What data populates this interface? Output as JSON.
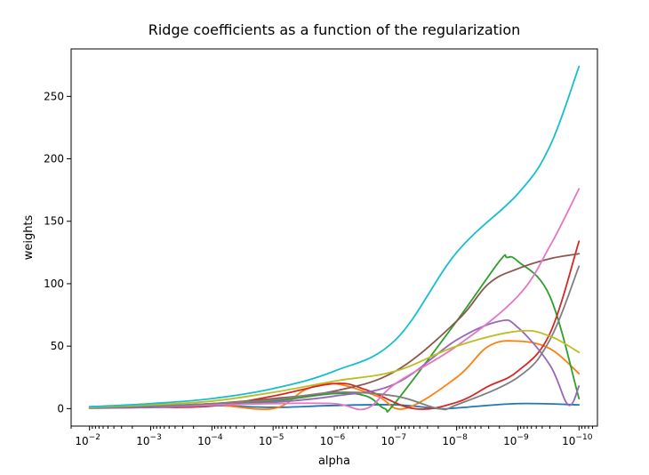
{
  "chart_data": {
    "type": "line",
    "title": "Ridge coefficients as a function of the regularization",
    "xlabel": "alpha",
    "ylabel": "weights",
    "xscale": "log",
    "xaxis_reversed": true,
    "xlim": [
      0.02,
      5e-11
    ],
    "ylim": [
      -14,
      288
    ],
    "grid": false,
    "legend": "none",
    "x_ticks": [
      {
        "value": 0.01,
        "base": "10",
        "exp": "−2"
      },
      {
        "value": 0.001,
        "base": "10",
        "exp": "−3"
      },
      {
        "value": 0.0001,
        "base": "10",
        "exp": "−4"
      },
      {
        "value": 1e-05,
        "base": "10",
        "exp": "−5"
      },
      {
        "value": 1e-06,
        "base": "10",
        "exp": "−6"
      },
      {
        "value": 1e-07,
        "base": "10",
        "exp": "−7"
      },
      {
        "value": 1e-08,
        "base": "10",
        "exp": "−8"
      },
      {
        "value": 1e-09,
        "base": "10",
        "exp": "−9"
      },
      {
        "value": 1e-10,
        "base": "10",
        "exp": "−10"
      }
    ],
    "y_ticks": [
      {
        "value": 0,
        "label": "0"
      },
      {
        "value": 50,
        "label": "50"
      },
      {
        "value": 100,
        "label": "100"
      },
      {
        "value": 150,
        "label": "150"
      },
      {
        "value": 200,
        "label": "200"
      },
      {
        "value": 250,
        "label": "250"
      }
    ],
    "x": [
      0.01,
      0.001,
      0.0001,
      1e-05,
      1e-06,
      1e-07,
      1e-08,
      1e-09,
      1e-10
    ],
    "series": [
      {
        "color": "#1f77b4",
        "points": [
          [
            0.01,
            1.5
          ],
          [
            0.001,
            2
          ],
          [
            0.0001,
            2.5
          ],
          [
            1e-05,
            1
          ],
          [
            1e-06,
            2.5
          ],
          [
            1e-07,
            3
          ],
          [
            2e-08,
            0
          ],
          [
            1e-08,
            0.5
          ],
          [
            1e-09,
            4
          ],
          [
            1e-10,
            3
          ]
        ]
      },
      {
        "color": "#ff7f0e",
        "points": [
          [
            0.01,
            0.5
          ],
          [
            0.001,
            1.5
          ],
          [
            0.0001,
            3
          ],
          [
            1e-05,
            0
          ],
          [
            3e-06,
            15
          ],
          [
            1e-06,
            20
          ],
          [
            2e-07,
            10
          ],
          [
            7e-08,
            0
          ],
          [
            1e-08,
            25
          ],
          [
            3e-09,
            50
          ],
          [
            1e-09,
            54
          ],
          [
            3e-10,
            48
          ],
          [
            1e-10,
            28
          ]
        ]
      },
      {
        "color": "#2ca02c",
        "points": [
          [
            0.01,
            0.5
          ],
          [
            0.001,
            2
          ],
          [
            0.0001,
            3
          ],
          [
            1e-05,
            6
          ],
          [
            1e-06,
            12
          ],
          [
            3e-07,
            10
          ],
          [
            1.5e-07,
            0
          ],
          [
            1e-07,
            5
          ],
          [
            1e-08,
            70
          ],
          [
            2e-09,
            118
          ],
          [
            1.5e-09,
            121
          ],
          [
            1e-09,
            118
          ],
          [
            3e-10,
            90
          ],
          [
            1e-10,
            8
          ]
        ]
      },
      {
        "color": "#d62728",
        "points": [
          [
            0.01,
            0.5
          ],
          [
            0.001,
            1
          ],
          [
            0.0001,
            2
          ],
          [
            1e-05,
            10
          ],
          [
            1e-06,
            20
          ],
          [
            3e-07,
            15
          ],
          [
            5e-08,
            0
          ],
          [
            1e-08,
            5
          ],
          [
            3e-09,
            18
          ],
          [
            1e-09,
            30
          ],
          [
            3e-10,
            60
          ],
          [
            1e-10,
            134
          ]
        ]
      },
      {
        "color": "#9467bd",
        "points": [
          [
            0.01,
            0.3
          ],
          [
            0.001,
            1
          ],
          [
            0.0001,
            2.5
          ],
          [
            1e-05,
            5
          ],
          [
            1e-06,
            10
          ],
          [
            1e-07,
            20
          ],
          [
            1e-08,
            55
          ],
          [
            2e-09,
            70
          ],
          [
            1e-09,
            65
          ],
          [
            3e-10,
            35
          ],
          [
            1.5e-10,
            3
          ],
          [
            1e-10,
            18
          ]
        ]
      },
      {
        "color": "#8c564b",
        "points": [
          [
            0.01,
            0.5
          ],
          [
            0.001,
            2
          ],
          [
            0.0001,
            4
          ],
          [
            1e-05,
            8
          ],
          [
            1e-06,
            14
          ],
          [
            1e-07,
            30
          ],
          [
            1e-08,
            70
          ],
          [
            3e-09,
            100
          ],
          [
            1e-09,
            112
          ],
          [
            3e-10,
            120
          ],
          [
            1e-10,
            124
          ]
        ]
      },
      {
        "color": "#e377c2",
        "points": [
          [
            0.01,
            1
          ],
          [
            0.001,
            2
          ],
          [
            0.0001,
            3
          ],
          [
            1e-05,
            4
          ],
          [
            1e-06,
            4
          ],
          [
            3e-07,
            0
          ],
          [
            1e-07,
            20
          ],
          [
            1e-08,
            50
          ],
          [
            1e-09,
            90
          ],
          [
            3e-10,
            130
          ],
          [
            1e-10,
            176
          ]
        ]
      },
      {
        "color": "#7f7f7f",
        "points": [
          [
            0.01,
            0.5
          ],
          [
            0.001,
            2
          ],
          [
            0.0001,
            4
          ],
          [
            1e-05,
            7
          ],
          [
            1e-06,
            13
          ],
          [
            1e-07,
            10
          ],
          [
            2e-08,
            0
          ],
          [
            1e-08,
            3
          ],
          [
            1e-09,
            25
          ],
          [
            3e-10,
            55
          ],
          [
            1e-10,
            114
          ]
        ]
      },
      {
        "color": "#bcbd22",
        "points": [
          [
            0.01,
            1
          ],
          [
            0.001,
            3
          ],
          [
            0.0001,
            6
          ],
          [
            1e-05,
            13
          ],
          [
            1e-06,
            22
          ],
          [
            1e-07,
            30
          ],
          [
            1e-08,
            50
          ],
          [
            1e-09,
            62
          ],
          [
            3e-10,
            58
          ],
          [
            1e-10,
            45
          ]
        ]
      },
      {
        "color": "#17becf",
        "points": [
          [
            0.01,
            1.5
          ],
          [
            0.001,
            4
          ],
          [
            0.0001,
            8
          ],
          [
            1e-05,
            16
          ],
          [
            1e-06,
            30
          ],
          [
            1e-07,
            55
          ],
          [
            1e-08,
            125
          ],
          [
            1e-09,
            172
          ],
          [
            3e-10,
            210
          ],
          [
            1e-10,
            274
          ]
        ]
      }
    ]
  }
}
